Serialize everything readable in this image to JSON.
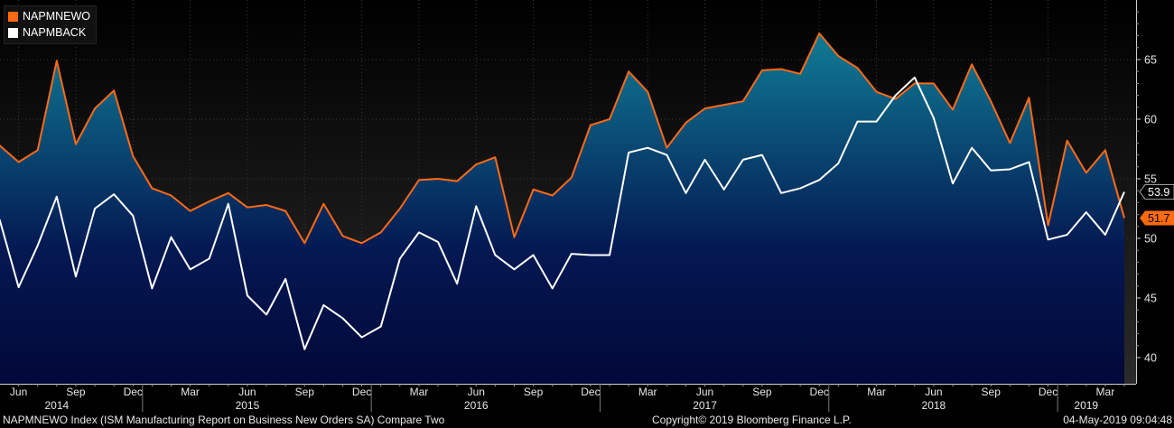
{
  "chart_data": {
    "type": "area",
    "months": [
      "2014-05",
      "2014-06",
      "2014-07",
      "2014-08",
      "2014-09",
      "2014-10",
      "2014-11",
      "2014-12",
      "2015-01",
      "2015-02",
      "2015-03",
      "2015-04",
      "2015-05",
      "2015-06",
      "2015-07",
      "2015-08",
      "2015-09",
      "2015-10",
      "2015-11",
      "2015-12",
      "2016-01",
      "2016-02",
      "2016-03",
      "2016-04",
      "2016-05",
      "2016-06",
      "2016-07",
      "2016-08",
      "2016-09",
      "2016-10",
      "2016-11",
      "2016-12",
      "2017-01",
      "2017-02",
      "2017-03",
      "2017-04",
      "2017-05",
      "2017-06",
      "2017-07",
      "2017-08",
      "2017-09",
      "2017-10",
      "2017-11",
      "2017-12",
      "2018-01",
      "2018-02",
      "2018-03",
      "2018-04",
      "2018-05",
      "2018-06",
      "2018-07",
      "2018-08",
      "2018-09",
      "2018-10",
      "2018-11",
      "2018-12",
      "2019-01",
      "2019-02",
      "2019-03",
      "2019-04"
    ],
    "series": [
      {
        "name": "NAPMNEWO",
        "color": "#ff6a13",
        "values": [
          57.8,
          56.4,
          57.4,
          64.9,
          57.9,
          60.9,
          62.4,
          56.9,
          54.2,
          53.6,
          52.3,
          53.1,
          53.8,
          52.6,
          52.8,
          52.3,
          49.6,
          52.9,
          50.2,
          49.6,
          50.5,
          52.5,
          54.9,
          55.0,
          54.8,
          56.2,
          56.8,
          50.1,
          54.1,
          53.6,
          55.1,
          59.5,
          60.0,
          64.0,
          62.3,
          57.6,
          59.7,
          60.9,
          61.2,
          61.5,
          64.1,
          64.2,
          63.8,
          67.2,
          65.3,
          64.3,
          62.3,
          61.7,
          63.0,
          63.0,
          60.8,
          64.6,
          61.5,
          58.0,
          61.8,
          51.1,
          58.2,
          55.5,
          57.4,
          51.7
        ]
      },
      {
        "name": "NAPMBACK",
        "color": "#ffffff",
        "values": [
          51.6,
          45.9,
          49.4,
          53.5,
          46.8,
          52.5,
          53.7,
          51.9,
          45.8,
          50.1,
          47.4,
          48.3,
          52.9,
          45.2,
          43.6,
          46.6,
          40.7,
          44.4,
          43.3,
          41.7,
          42.6,
          48.3,
          50.5,
          49.7,
          46.2,
          52.7,
          48.6,
          47.4,
          48.6,
          45.8,
          48.7,
          48.6,
          48.6,
          57.2,
          57.6,
          57.0,
          53.8,
          56.6,
          54.1,
          56.6,
          57.0,
          53.8,
          54.2,
          54.9,
          56.3,
          59.8,
          59.8,
          62.0,
          63.5,
          60.1,
          54.6,
          57.6,
          55.7,
          55.8,
          56.4,
          49.9,
          50.3,
          52.2,
          50.3,
          53.9
        ]
      }
    ],
    "y_ticks": [
      "40",
      "45",
      "50",
      "55",
      "60",
      "65"
    ],
    "ylim": [
      38.5,
      69.6
    ],
    "month_ticks": [
      {
        "label": "Jun",
        "m": "2014-06"
      },
      {
        "label": "Sep",
        "m": "2014-09"
      },
      {
        "label": "Dec",
        "m": "2014-12"
      },
      {
        "label": "Mar",
        "m": "2015-03"
      },
      {
        "label": "Jun",
        "m": "2015-06"
      },
      {
        "label": "Sep",
        "m": "2015-09"
      },
      {
        "label": "Dec",
        "m": "2015-12"
      },
      {
        "label": "Mar",
        "m": "2016-03"
      },
      {
        "label": "Jun",
        "m": "2016-06"
      },
      {
        "label": "Sep",
        "m": "2016-09"
      },
      {
        "label": "Dec",
        "m": "2016-12"
      },
      {
        "label": "Mar",
        "m": "2017-03"
      },
      {
        "label": "Jun",
        "m": "2017-06"
      },
      {
        "label": "Sep",
        "m": "2017-09"
      },
      {
        "label": "Dec",
        "m": "2017-12"
      },
      {
        "label": "Mar",
        "m": "2018-03"
      },
      {
        "label": "Jun",
        "m": "2018-06"
      },
      {
        "label": "Sep",
        "m": "2018-09"
      },
      {
        "label": "Dec",
        "m": "2018-12"
      },
      {
        "label": "Mar",
        "m": "2019-03"
      }
    ],
    "year_labels": [
      {
        "label": "2014",
        "m": "2014-08"
      },
      {
        "label": "2015",
        "m": "2015-06"
      },
      {
        "label": "2016",
        "m": "2016-06"
      },
      {
        "label": "2017",
        "m": "2017-06"
      },
      {
        "label": "2018",
        "m": "2018-06"
      },
      {
        "label": "2019",
        "m": "2019-02"
      }
    ],
    "last_value_labels": [
      {
        "series": "NAPMBACK",
        "text": "53.9",
        "bg": "#000000",
        "fg": "#ffffff"
      },
      {
        "series": "NAPMNEWO",
        "text": "51.7",
        "bg": "#ff6a13",
        "fg": "#000000"
      }
    ],
    "grid": true,
    "legend_position": "top-left",
    "gradient_colors": [
      "#0f7c94",
      "#041852",
      "#020838"
    ]
  },
  "legend": [
    {
      "label": "NAPMNEWO",
      "color": "#ff6a13"
    },
    {
      "label": "NAPMBACK",
      "color": "#ffffff"
    }
  ],
  "footer": {
    "left": "NAPMNEWO Index (ISM Manufacturing Report on Business New Orders SA) Compare Two",
    "center": "Copyright© 2019 Bloomberg Finance L.P.",
    "right": "04-May-2019 09:04:48"
  }
}
